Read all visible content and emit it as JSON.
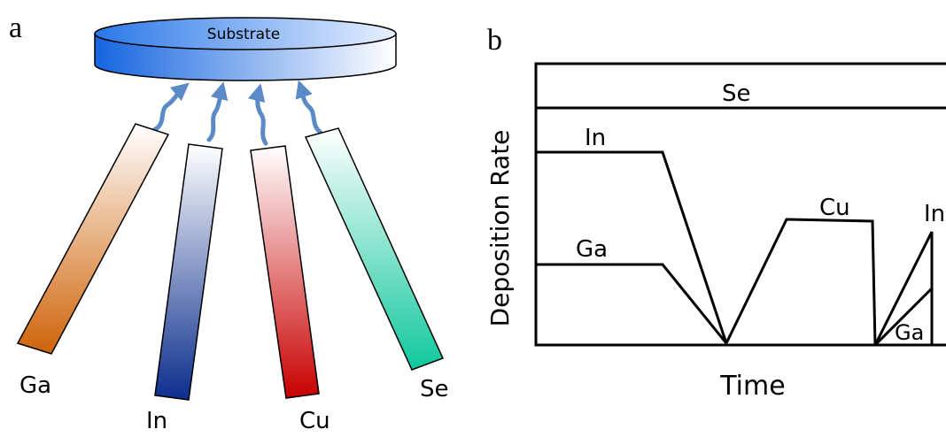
{
  "panel_a": {
    "label": "a",
    "substrate": "Substrate",
    "sources": [
      {
        "label": "Ga"
      },
      {
        "label": "In"
      },
      {
        "label": "Cu"
      },
      {
        "label": "Se"
      }
    ]
  },
  "panel_b": {
    "label": "b",
    "y_axis_label": "Deposition Rate",
    "x_axis_label": "Time",
    "curve_labels": [
      "Se",
      "In",
      "Ga",
      "Cu",
      "In",
      "Ga"
    ]
  }
}
